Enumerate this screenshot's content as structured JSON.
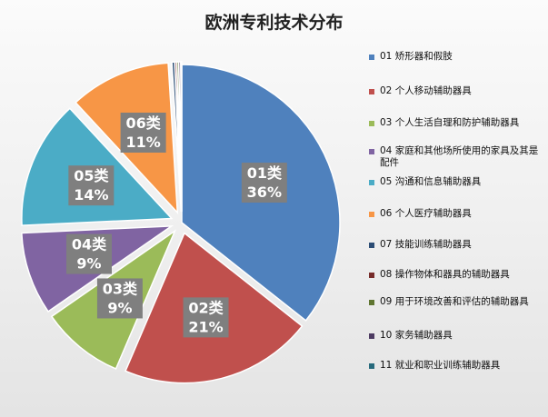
{
  "chart_data": {
    "type": "pie",
    "title": "欧洲专利技术分布",
    "slices": [
      {
        "legend": "01 矫形器和假肢",
        "label": "01类",
        "pct": "36%",
        "value": 36,
        "color": "#4f81bd",
        "explode": false
      },
      {
        "legend": "02 个人移动辅助器具",
        "label": "02类",
        "pct": "21%",
        "value": 21,
        "color": "#c0504d",
        "explode": true
      },
      {
        "legend": "03 个人生活自理和防护辅助器具",
        "label": "03类",
        "pct": "9%",
        "value": 9,
        "color": "#9bbb59",
        "explode": true
      },
      {
        "legend": "04 家庭和其他场所使用的家具及其是配件",
        "label": "04类",
        "pct": "9%",
        "value": 9,
        "color": "#8064a2",
        "explode": true
      },
      {
        "legend": "05 沟通和信息辅助器具",
        "label": "05类",
        "pct": "14%",
        "value": 14,
        "color": "#4bacc6",
        "explode": true
      },
      {
        "legend": "06 个人医疗辅助器具",
        "label": "06类",
        "pct": "11%",
        "value": 11,
        "color": "#f79646",
        "explode": true
      },
      {
        "legend": "07 技能训练辅助器具",
        "label": "",
        "pct": "",
        "value": 0.3,
        "color": "#2c4d75",
        "explode": true
      },
      {
        "legend": "08 操作物体和器具的辅助器具",
        "label": "",
        "pct": "",
        "value": 0.2,
        "color": "#772c2a",
        "explode": true
      },
      {
        "legend": "09 用于环境改善和评估的辅助器具",
        "label": "",
        "pct": "",
        "value": 0.2,
        "color": "#5f7530",
        "explode": true
      },
      {
        "legend": "10 家务辅助器具",
        "label": "",
        "pct": "",
        "value": 0.2,
        "color": "#4d3b62",
        "explode": true
      },
      {
        "legend": "11 就业和职业训练辅助器具",
        "label": "",
        "pct": "",
        "value": 0.1,
        "color": "#276a7c",
        "explode": true
      }
    ]
  }
}
